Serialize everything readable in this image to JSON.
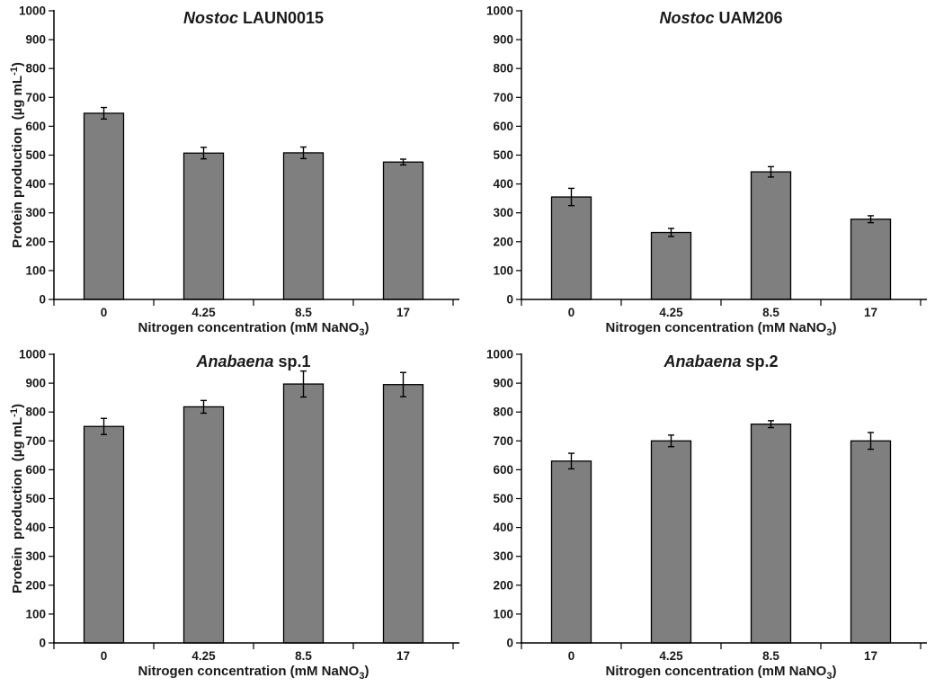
{
  "figure": {
    "background": "#ffffff",
    "bar_fill": "#7f7f7f",
    "bar_stroke": "#000000",
    "error_bar_color": "#000000",
    "axis_color": "#000000",
    "text_color": "#1a1a1a"
  },
  "chart_data": [
    {
      "type": "bar",
      "title": {
        "italic": "Nostoc",
        "rest": " LAUN0015"
      },
      "categories": [
        "0",
        "4.25",
        "8.5",
        "17"
      ],
      "values": [
        645,
        507,
        508,
        476
      ],
      "errors": [
        20,
        20,
        20,
        10
      ],
      "ylim": [
        0,
        1000
      ],
      "ytick_step": 100,
      "ytick_labels": [
        "0",
        "100",
        "200",
        "300",
        "400",
        "500",
        "600",
        "700",
        "800",
        "900",
        "1000"
      ],
      "ylabel": [
        {
          "t": "Protein production  (µg mL"
        },
        {
          "t": "-1",
          "sup": true
        },
        {
          "t": ")"
        }
      ],
      "xlabel": [
        {
          "t": "Nitrogen concentration (mM NaNO"
        },
        {
          "t": "3",
          "sub": true
        },
        {
          "t": ")"
        }
      ],
      "grid": false,
      "legend": null
    },
    {
      "type": "bar",
      "title": {
        "italic": "Nostoc",
        "rest": " UAM206"
      },
      "categories": [
        "0",
        "4.25",
        "8.5",
        "17"
      ],
      "values": [
        355,
        232,
        442,
        278
      ],
      "errors": [
        30,
        14,
        18,
        12
      ],
      "ylim": [
        0,
        1000
      ],
      "ytick_step": 100,
      "ytick_labels": [
        "0",
        "100",
        "200",
        "300",
        "400",
        "500",
        "600",
        "700",
        "800",
        "900",
        "1000"
      ],
      "ylabel": null,
      "xlabel": [
        {
          "t": "Nitrogen concentration (mM NaNO"
        },
        {
          "t": "3",
          "sub": true
        },
        {
          "t": ")"
        }
      ],
      "grid": false,
      "legend": null
    },
    {
      "type": "bar",
      "title": {
        "italic": "Anabaena",
        "rest": " sp.1"
      },
      "categories": [
        "0",
        "4.25",
        "8.5",
        "17"
      ],
      "values": [
        750,
        818,
        897,
        895
      ],
      "errors": [
        28,
        22,
        45,
        42
      ],
      "ylim": [
        0,
        1000
      ],
      "ytick_step": 100,
      "ytick_labels": [
        "0",
        "100",
        "200",
        "300",
        "400",
        "500",
        "600",
        "700",
        "800",
        "900",
        "1000"
      ],
      "ylabel": [
        {
          "t": "Protein  production  (µg mL"
        },
        {
          "t": "-1",
          "sup": true
        },
        {
          "t": ")"
        }
      ],
      "xlabel": [
        {
          "t": "Nitrogen concentration (mM NaNO"
        },
        {
          "t": "3",
          "sub": true
        },
        {
          "t": ")"
        }
      ],
      "grid": false,
      "legend": null
    },
    {
      "type": "bar",
      "title": {
        "italic": "Anabaena",
        "rest": " sp.2"
      },
      "categories": [
        "0",
        "4.25",
        "8.5",
        "17"
      ],
      "values": [
        630,
        700,
        758,
        700
      ],
      "errors": [
        27,
        20,
        12,
        29
      ],
      "ylim": [
        0,
        1000
      ],
      "ytick_step": 100,
      "ytick_labels": [
        "0",
        "100",
        "200",
        "300",
        "400",
        "500",
        "600",
        "700",
        "800",
        "900",
        "1000"
      ],
      "ylabel": null,
      "xlabel": [
        {
          "t": "Nitrogen concentration (mM NaNO"
        },
        {
          "t": "3",
          "sub": true
        },
        {
          "t": ")"
        }
      ],
      "grid": false,
      "legend": null
    }
  ]
}
